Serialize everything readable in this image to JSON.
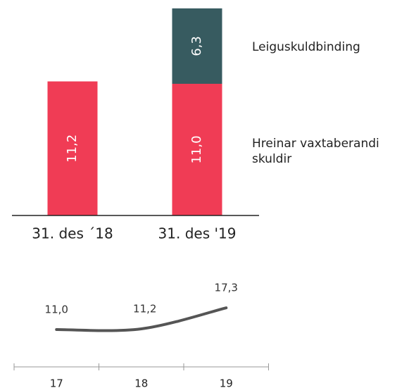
{
  "chart_data": [
    {
      "type": "bar",
      "stacked": true,
      "categories": [
        "31. des ´18",
        "31. des '19"
      ],
      "series": [
        {
          "name": "Hreinar vaxtaberandi skuldir",
          "color": "#f03c55",
          "values": [
            11.2,
            11.0
          ],
          "value_labels": [
            "11,2",
            "11,0"
          ]
        },
        {
          "name": "Leiguskuldbinding",
          "color": "#375b60",
          "values": [
            null,
            6.3
          ],
          "value_labels": [
            null,
            "6,3"
          ]
        }
      ]
    },
    {
      "type": "line",
      "categories": [
        "17",
        "18",
        "19"
      ],
      "values": [
        11.0,
        11.2,
        17.3
      ],
      "value_labels": [
        "11,0",
        "11,2",
        "17,3"
      ],
      "color": "#555555"
    }
  ]
}
